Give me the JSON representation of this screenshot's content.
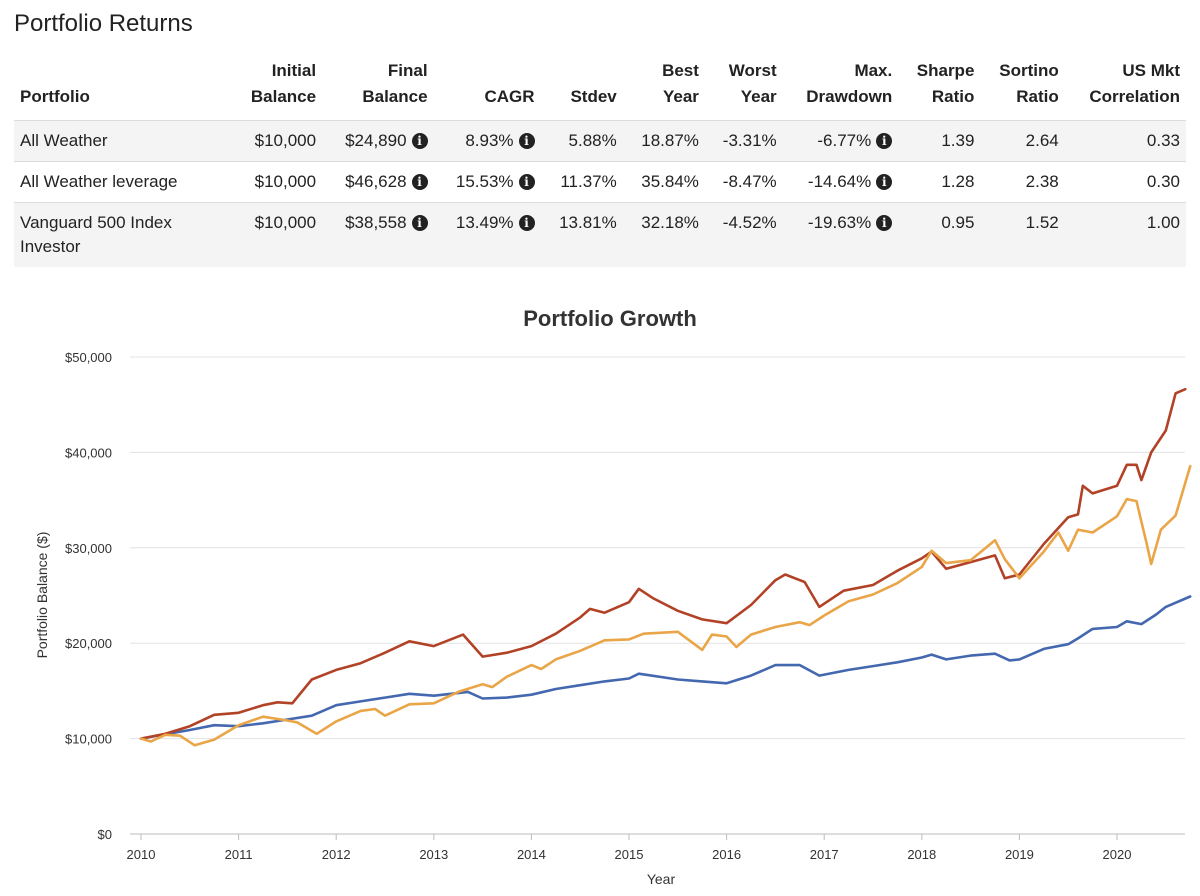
{
  "page": {
    "title": "Portfolio Returns"
  },
  "table": {
    "headers": [
      [
        "",
        "Portfolio"
      ],
      [
        "Initial",
        "Balance"
      ],
      [
        "Final",
        "Balance"
      ],
      [
        "",
        "CAGR"
      ],
      [
        "",
        "Stdev"
      ],
      [
        "Best",
        "Year"
      ],
      [
        "Worst",
        "Year"
      ],
      [
        "Max.",
        "Drawdown"
      ],
      [
        "Sharpe",
        "Ratio"
      ],
      [
        "Sortino",
        "Ratio"
      ],
      [
        "US Mkt",
        "Correlation"
      ]
    ],
    "rows": [
      {
        "portfolio": "All Weather",
        "initial": "$10,000",
        "final": "$24,890",
        "cagr": "8.93%",
        "stdev": "5.88%",
        "best": "18.87%",
        "worst": "-3.31%",
        "drawdown": "-6.77%",
        "sharpe": "1.39",
        "sortino": "2.64",
        "correlation": "0.33"
      },
      {
        "portfolio": "All Weather leverage",
        "initial": "$10,000",
        "final": "$46,628",
        "cagr": "15.53%",
        "stdev": "11.37%",
        "best": "35.84%",
        "worst": "-8.47%",
        "drawdown": "-14.64%",
        "sharpe": "1.28",
        "sortino": "2.38",
        "correlation": "0.30"
      },
      {
        "portfolio": "Vanguard 500 Index Investor",
        "initial": "$10,000",
        "final": "$38,558",
        "cagr": "13.49%",
        "stdev": "13.81%",
        "best": "32.18%",
        "worst": "-4.52%",
        "drawdown": "-19.63%",
        "sharpe": "0.95",
        "sortino": "1.52",
        "correlation": "1.00"
      }
    ],
    "info_icon": "info-circle-icon"
  },
  "chart_data": {
    "type": "line",
    "title": "Portfolio Growth",
    "xlabel": "Year",
    "ylabel": "Portfolio Balance ($)",
    "xlim": [
      2010,
      2020.75
    ],
    "ylim": [
      0,
      50000
    ],
    "yticks": [
      0,
      10000,
      20000,
      30000,
      40000,
      50000
    ],
    "ytick_labels": [
      "$0",
      "$10,000",
      "$20,000",
      "$30,000",
      "$40,000",
      "$50,000"
    ],
    "xticks": [
      2010,
      2011,
      2012,
      2013,
      2014,
      2015,
      2016,
      2017,
      2018,
      2019,
      2020
    ],
    "xtick_labels": [
      "2010",
      "2011",
      "2012",
      "2013",
      "2014",
      "2015",
      "2016",
      "2017",
      "2018",
      "2019",
      "2020"
    ],
    "grid": "horizontal",
    "series": [
      {
        "color": "#4468b0",
        "points": [
          [
            2010.0,
            10000
          ],
          [
            2010.5,
            10900
          ],
          [
            2010.75,
            11400
          ],
          [
            2011.0,
            11300
          ],
          [
            2011.25,
            11600
          ],
          [
            2011.5,
            12000
          ],
          [
            2011.75,
            12400
          ],
          [
            2012.0,
            13500
          ],
          [
            2012.25,
            13900
          ],
          [
            2012.5,
            14300
          ],
          [
            2012.75,
            14700
          ],
          [
            2013.0,
            14500
          ],
          [
            2013.35,
            14900
          ],
          [
            2013.5,
            14200
          ],
          [
            2013.75,
            14300
          ],
          [
            2014.0,
            14600
          ],
          [
            2014.25,
            15200
          ],
          [
            2014.5,
            15600
          ],
          [
            2014.75,
            16000
          ],
          [
            2015.0,
            16300
          ],
          [
            2015.1,
            16800
          ],
          [
            2015.5,
            16200
          ],
          [
            2015.75,
            16000
          ],
          [
            2016.0,
            15800
          ],
          [
            2016.25,
            16600
          ],
          [
            2016.5,
            17700
          ],
          [
            2016.75,
            17700
          ],
          [
            2016.95,
            16600
          ],
          [
            2017.25,
            17200
          ],
          [
            2017.5,
            17600
          ],
          [
            2017.75,
            18000
          ],
          [
            2018.0,
            18500
          ],
          [
            2018.1,
            18800
          ],
          [
            2018.25,
            18300
          ],
          [
            2018.5,
            18700
          ],
          [
            2018.75,
            18900
          ],
          [
            2018.9,
            18200
          ],
          [
            2019.0,
            18300
          ],
          [
            2019.25,
            19400
          ],
          [
            2019.5,
            19900
          ],
          [
            2019.6,
            20500
          ],
          [
            2019.75,
            21500
          ],
          [
            2020.0,
            21700
          ],
          [
            2020.1,
            22300
          ],
          [
            2020.25,
            22000
          ],
          [
            2020.4,
            23000
          ],
          [
            2020.5,
            23800
          ],
          [
            2020.75,
            24890
          ]
        ]
      },
      {
        "color": "#b24226",
        "points": [
          [
            2010.0,
            10000
          ],
          [
            2010.25,
            10500
          ],
          [
            2010.5,
            11300
          ],
          [
            2010.75,
            12500
          ],
          [
            2011.0,
            12700
          ],
          [
            2011.25,
            13500
          ],
          [
            2011.4,
            13800
          ],
          [
            2011.55,
            13700
          ],
          [
            2011.75,
            16200
          ],
          [
            2012.0,
            17200
          ],
          [
            2012.25,
            17900
          ],
          [
            2012.5,
            19000
          ],
          [
            2012.75,
            20200
          ],
          [
            2013.0,
            19700
          ],
          [
            2013.3,
            20900
          ],
          [
            2013.5,
            18600
          ],
          [
            2013.75,
            19000
          ],
          [
            2014.0,
            19700
          ],
          [
            2014.25,
            21000
          ],
          [
            2014.5,
            22700
          ],
          [
            2014.6,
            23600
          ],
          [
            2014.75,
            23200
          ],
          [
            2015.0,
            24300
          ],
          [
            2015.1,
            25700
          ],
          [
            2015.25,
            24700
          ],
          [
            2015.5,
            23400
          ],
          [
            2015.75,
            22500
          ],
          [
            2016.0,
            22100
          ],
          [
            2016.25,
            24000
          ],
          [
            2016.5,
            26600
          ],
          [
            2016.6,
            27200
          ],
          [
            2016.8,
            26400
          ],
          [
            2016.95,
            23800
          ],
          [
            2017.2,
            25500
          ],
          [
            2017.5,
            26100
          ],
          [
            2017.75,
            27600
          ],
          [
            2018.0,
            28900
          ],
          [
            2018.1,
            29600
          ],
          [
            2018.25,
            27800
          ],
          [
            2018.5,
            28500
          ],
          [
            2018.75,
            29200
          ],
          [
            2018.85,
            26800
          ],
          [
            2019.0,
            27200
          ],
          [
            2019.25,
            30400
          ],
          [
            2019.5,
            33200
          ],
          [
            2019.6,
            33500
          ],
          [
            2019.65,
            36500
          ],
          [
            2019.75,
            35700
          ],
          [
            2020.0,
            36500
          ],
          [
            2020.1,
            38700
          ],
          [
            2020.2,
            38700
          ],
          [
            2020.25,
            37100
          ],
          [
            2020.35,
            40000
          ],
          [
            2020.5,
            42300
          ],
          [
            2020.6,
            46200
          ],
          [
            2020.7,
            46628
          ]
        ]
      },
      {
        "color": "#e9a547",
        "points": [
          [
            2010.0,
            10000
          ],
          [
            2010.1,
            9700
          ],
          [
            2010.25,
            10400
          ],
          [
            2010.4,
            10300
          ],
          [
            2010.55,
            9300
          ],
          [
            2010.75,
            9900
          ],
          [
            2011.0,
            11400
          ],
          [
            2011.25,
            12300
          ],
          [
            2011.5,
            11900
          ],
          [
            2011.6,
            11700
          ],
          [
            2011.8,
            10500
          ],
          [
            2012.0,
            11800
          ],
          [
            2012.25,
            12900
          ],
          [
            2012.4,
            13100
          ],
          [
            2012.5,
            12400
          ],
          [
            2012.75,
            13600
          ],
          [
            2013.0,
            13700
          ],
          [
            2013.25,
            14900
          ],
          [
            2013.5,
            15700
          ],
          [
            2013.6,
            15400
          ],
          [
            2013.75,
            16500
          ],
          [
            2014.0,
            17700
          ],
          [
            2014.1,
            17300
          ],
          [
            2014.25,
            18300
          ],
          [
            2014.5,
            19200
          ],
          [
            2014.75,
            20300
          ],
          [
            2015.0,
            20400
          ],
          [
            2015.15,
            21000
          ],
          [
            2015.5,
            21200
          ],
          [
            2015.75,
            19300
          ],
          [
            2015.85,
            20900
          ],
          [
            2016.0,
            20700
          ],
          [
            2016.1,
            19600
          ],
          [
            2016.25,
            20900
          ],
          [
            2016.5,
            21700
          ],
          [
            2016.75,
            22200
          ],
          [
            2016.85,
            21900
          ],
          [
            2017.0,
            22900
          ],
          [
            2017.25,
            24400
          ],
          [
            2017.5,
            25100
          ],
          [
            2017.75,
            26300
          ],
          [
            2018.0,
            28000
          ],
          [
            2018.1,
            29700
          ],
          [
            2018.25,
            28400
          ],
          [
            2018.5,
            28700
          ],
          [
            2018.75,
            30800
          ],
          [
            2018.85,
            28800
          ],
          [
            2019.0,
            26800
          ],
          [
            2019.25,
            29600
          ],
          [
            2019.4,
            31600
          ],
          [
            2019.5,
            29700
          ],
          [
            2019.6,
            31900
          ],
          [
            2019.75,
            31600
          ],
          [
            2020.0,
            33300
          ],
          [
            2020.1,
            35100
          ],
          [
            2020.2,
            34900
          ],
          [
            2020.3,
            30600
          ],
          [
            2020.35,
            28300
          ],
          [
            2020.45,
            31900
          ],
          [
            2020.6,
            33400
          ],
          [
            2020.75,
            38558
          ]
        ]
      }
    ]
  }
}
